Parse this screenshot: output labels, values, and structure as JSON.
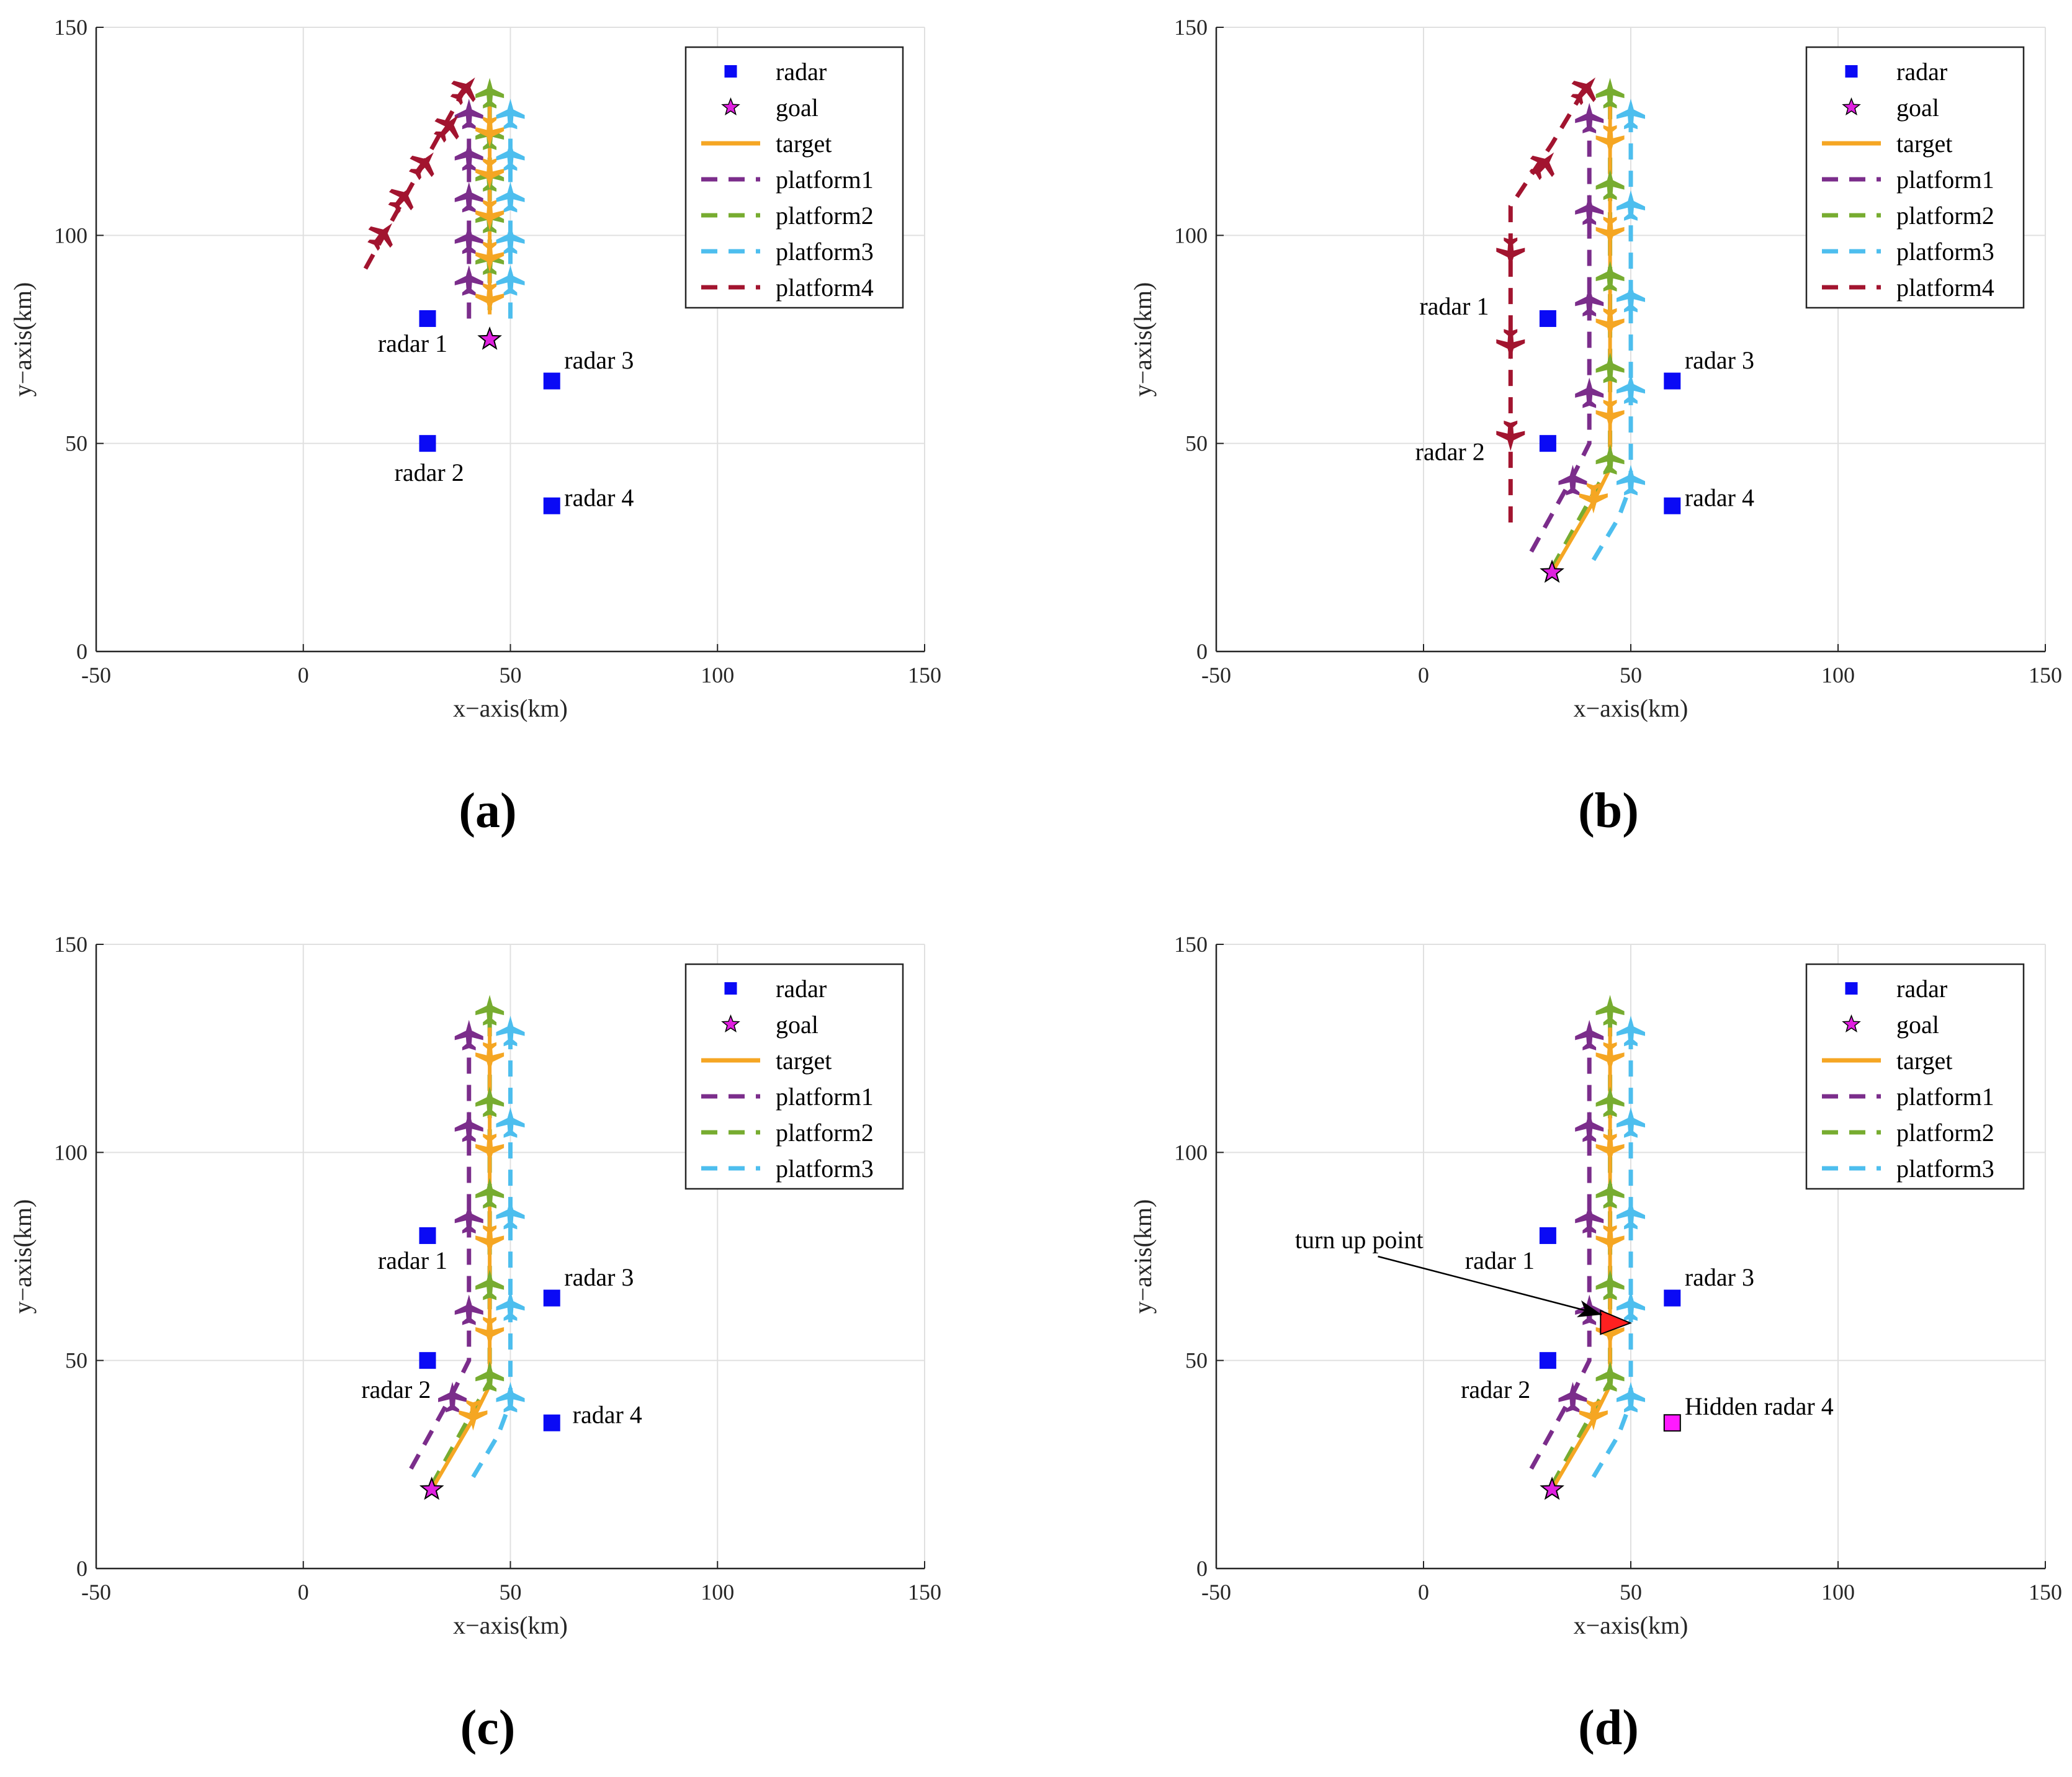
{
  "figure": {
    "panel_labels": [
      "(a)",
      "(b)",
      "(c)",
      "(d)"
    ]
  },
  "colors": {
    "radar": "#0a0af5",
    "hidden_radar": "#ff1aff",
    "goal": "#e020e0",
    "target": "#f5a623",
    "platform1": "#7b2d8b",
    "platform2": "#77ac30",
    "platform3": "#4dbeee",
    "platform4": "#a2142f",
    "grid": "#e0e0e0",
    "axis": "#262626",
    "turn_marker": "#ff2020"
  },
  "chart_data": [
    {
      "type": "scatter",
      "panel": "(a)",
      "xlabel": "x−axis(km)",
      "ylabel": "y−axis(km)",
      "xlim": [
        -50,
        150
      ],
      "ylim": [
        0,
        150
      ],
      "xticks": [
        -50,
        0,
        50,
        100,
        150
      ],
      "yticks": [
        0,
        50,
        100,
        150
      ],
      "xtick_labels": [
        "-50",
        "0",
        "50",
        "100",
        "150"
      ],
      "ytick_labels": [
        "0",
        "50",
        "100",
        "150"
      ],
      "legend": [
        "radar",
        "goal",
        "target",
        "platform1",
        "platform2",
        "platform3",
        "platform4"
      ],
      "radars": [
        {
          "name": "radar 1",
          "x": 30,
          "y": 80,
          "label": "radar 1",
          "label_at": [
            18,
            72
          ]
        },
        {
          "name": "radar 2",
          "x": 30,
          "y": 50,
          "label": "radar 2",
          "label_at": [
            22,
            41
          ]
        },
        {
          "name": "radar 3",
          "x": 60,
          "y": 65,
          "label": "radar 3",
          "label_at": [
            63,
            68
          ]
        },
        {
          "name": "radar 4",
          "x": 60,
          "y": 35,
          "label": "radar 4",
          "label_at": [
            63,
            35
          ]
        }
      ],
      "goal": {
        "x": 45,
        "y": 75
      },
      "target": {
        "path": [
          [
            45,
            81
          ],
          [
            45,
            135
          ]
        ],
        "planes": [
          [
            45,
            85
          ],
          [
            45,
            95
          ],
          [
            45,
            105
          ],
          [
            45,
            115
          ],
          [
            45,
            125
          ]
        ],
        "plane_dir": "down"
      },
      "platforms": [
        {
          "name": "platform1",
          "path": [
            [
              40,
              80
            ],
            [
              40,
              130
            ]
          ],
          "planes": [
            [
              40,
              89
            ],
            [
              40,
              99
            ],
            [
              40,
              109
            ],
            [
              40,
              119
            ],
            [
              40,
              129
            ]
          ],
          "plane_dir": "up"
        },
        {
          "name": "platform2",
          "path": [
            [
              45,
              82
            ],
            [
              45,
              135
            ]
          ],
          "planes": [
            [
              45,
              94
            ],
            [
              45,
              104
            ],
            [
              45,
              114
            ],
            [
              45,
              124
            ],
            [
              45,
              134
            ]
          ],
          "plane_dir": "up"
        },
        {
          "name": "platform3",
          "path": [
            [
              50,
              80
            ],
            [
              50,
              130
            ]
          ],
          "planes": [
            [
              50,
              89
            ],
            [
              50,
              99
            ],
            [
              50,
              109
            ],
            [
              50,
              119
            ],
            [
              50,
              129
            ]
          ],
          "plane_dir": "up"
        },
        {
          "name": "platform4",
          "path": [
            [
              15,
              92
            ],
            [
              40,
              137
            ]
          ],
          "planes": [
            [
              19,
              100
            ],
            [
              24,
              109
            ],
            [
              29,
              117
            ],
            [
              35,
              126
            ],
            [
              39,
              135
            ]
          ],
          "plane_dir": "upright"
        }
      ]
    },
    {
      "type": "scatter",
      "panel": "(b)",
      "xlabel": "x−axis(km)",
      "ylabel": "y−axis(km)",
      "xlim": [
        -50,
        150
      ],
      "ylim": [
        0,
        150
      ],
      "xticks": [
        -50,
        0,
        50,
        100,
        150
      ],
      "yticks": [
        0,
        50,
        100,
        150
      ],
      "xtick_labels": [
        "-50",
        "0",
        "50",
        "100",
        "150"
      ],
      "ytick_labels": [
        "0",
        "50",
        "100",
        "150"
      ],
      "legend": [
        "radar",
        "goal",
        "target",
        "platform1",
        "platform2",
        "platform3",
        "platform4"
      ],
      "radars": [
        {
          "name": "radar 1",
          "x": 30,
          "y": 80,
          "label": "radar 1",
          "label_at": [
            -1,
            81
          ]
        },
        {
          "name": "radar 2",
          "x": 30,
          "y": 50,
          "label": "radar 2",
          "label_at": [
            -2,
            46
          ]
        },
        {
          "name": "radar 3",
          "x": 60,
          "y": 65,
          "label": "radar 3",
          "label_at": [
            63,
            68
          ]
        },
        {
          "name": "radar 4",
          "x": 60,
          "y": 35,
          "label": "radar 4",
          "label_at": [
            63,
            35
          ]
        }
      ],
      "goal": {
        "x": 31,
        "y": 19
      },
      "target": {
        "path": [
          [
            31,
            19
          ],
          [
            41,
            36
          ],
          [
            45,
            44
          ],
          [
            45,
            135
          ]
        ],
        "planes": [
          [
            41,
            37
          ],
          [
            45,
            57
          ],
          [
            45,
            79
          ],
          [
            45,
            101
          ],
          [
            45,
            123
          ]
        ],
        "plane_dir": "down"
      },
      "platforms": [
        {
          "name": "platform1",
          "path": [
            [
              26,
              24
            ],
            [
              36,
              42
            ],
            [
              40,
              50
            ],
            [
              40,
              130
            ]
          ],
          "planes": [
            [
              36,
              41
            ],
            [
              40,
              62
            ],
            [
              40,
              84
            ],
            [
              40,
              106
            ],
            [
              40,
              128
            ]
          ],
          "plane_dir": "up"
        },
        {
          "name": "platform2",
          "path": [
            [
              31,
              20
            ],
            [
              41,
              38
            ],
            [
              45,
              45
            ],
            [
              45,
              135
            ]
          ],
          "planes": [
            [
              45,
              46
            ],
            [
              45,
              68
            ],
            [
              45,
              90
            ],
            [
              45,
              112
            ],
            [
              45,
              134
            ]
          ],
          "plane_dir": "up"
        },
        {
          "name": "platform3",
          "path": [
            [
              41,
              22
            ],
            [
              47,
              32
            ],
            [
              50,
              40
            ],
            [
              50,
              130
            ]
          ],
          "planes": [
            [
              50,
              41
            ],
            [
              50,
              63
            ],
            [
              50,
              85
            ],
            [
              50,
              107
            ],
            [
              50,
              129
            ]
          ],
          "plane_dir": "up"
        },
        {
          "name": "platform4",
          "path": [
            [
              21,
              31
            ],
            [
              21,
              107
            ],
            [
              31,
              122
            ],
            [
              40,
              137
            ]
          ],
          "planes": [
            [
              21,
              52
            ],
            [
              21,
              74
            ],
            [
              21,
              96
            ],
            [
              29,
              117
            ],
            [
              39,
              135
            ]
          ],
          "plane_dir": "mixed"
        }
      ]
    },
    {
      "type": "scatter",
      "panel": "(c)",
      "xlabel": "x−axis(km)",
      "ylabel": "y−axis(km)",
      "xlim": [
        -50,
        150
      ],
      "ylim": [
        0,
        150
      ],
      "xticks": [
        -50,
        0,
        50,
        100,
        150
      ],
      "yticks": [
        0,
        50,
        100,
        150
      ],
      "xtick_labels": [
        "-50",
        "0",
        "50",
        "100",
        "150"
      ],
      "ytick_labels": [
        "0",
        "50",
        "100",
        "150"
      ],
      "legend": [
        "radar",
        "goal",
        "target",
        "platform1",
        "platform2",
        "platform3"
      ],
      "radars": [
        {
          "name": "radar 1",
          "x": 30,
          "y": 80,
          "label": "radar 1",
          "label_at": [
            18,
            72
          ]
        },
        {
          "name": "radar 2",
          "x": 30,
          "y": 50,
          "label": "radar 2",
          "label_at": [
            14,
            41
          ]
        },
        {
          "name": "radar 3",
          "x": 60,
          "y": 65,
          "label": "radar 3",
          "label_at": [
            63,
            68
          ]
        },
        {
          "name": "radar 4",
          "x": 60,
          "y": 35,
          "label": "radar 4",
          "label_at": [
            65,
            35
          ]
        }
      ],
      "goal": {
        "x": 31,
        "y": 19
      },
      "target": {
        "path": [
          [
            31,
            19
          ],
          [
            41,
            36
          ],
          [
            45,
            44
          ],
          [
            45,
            130
          ]
        ],
        "planes": [
          [
            41,
            37
          ],
          [
            45,
            57
          ],
          [
            45,
            79
          ],
          [
            45,
            101
          ],
          [
            45,
            123
          ]
        ],
        "plane_dir": "down"
      },
      "platforms": [
        {
          "name": "platform1",
          "path": [
            [
              26,
              24
            ],
            [
              36,
              42
            ],
            [
              40,
              50
            ],
            [
              40,
              130
            ]
          ],
          "planes": [
            [
              36,
              41
            ],
            [
              40,
              62
            ],
            [
              40,
              84
            ],
            [
              40,
              106
            ],
            [
              40,
              128
            ]
          ],
          "plane_dir": "up"
        },
        {
          "name": "platform2",
          "path": [
            [
              31,
              20
            ],
            [
              41,
              38
            ],
            [
              45,
              45
            ],
            [
              45,
              135
            ]
          ],
          "planes": [
            [
              45,
              46
            ],
            [
              45,
              68
            ],
            [
              45,
              90
            ],
            [
              45,
              112
            ],
            [
              45,
              134
            ]
          ],
          "plane_dir": "up"
        },
        {
          "name": "platform3",
          "path": [
            [
              41,
              22
            ],
            [
              47,
              32
            ],
            [
              50,
              40
            ],
            [
              50,
              130
            ]
          ],
          "planes": [
            [
              50,
              41
            ],
            [
              50,
              63
            ],
            [
              50,
              85
            ],
            [
              50,
              107
            ],
            [
              50,
              129
            ]
          ],
          "plane_dir": "up"
        }
      ]
    },
    {
      "type": "scatter",
      "panel": "(d)",
      "xlabel": "x−axis(km)",
      "ylabel": "y−axis(km)",
      "xlim": [
        -50,
        150
      ],
      "ylim": [
        0,
        150
      ],
      "xticks": [
        -50,
        0,
        50,
        100,
        150
      ],
      "yticks": [
        0,
        50,
        100,
        150
      ],
      "xtick_labels": [
        "-50",
        "0",
        "50",
        "100",
        "150"
      ],
      "ytick_labels": [
        "0",
        "50",
        "100",
        "150"
      ],
      "legend": [
        "radar",
        "goal",
        "target",
        "platform1",
        "platform2",
        "platform3"
      ],
      "radars": [
        {
          "name": "radar 1",
          "x": 30,
          "y": 80,
          "label": "radar 1",
          "label_at": [
            10,
            72
          ]
        },
        {
          "name": "radar 2",
          "x": 30,
          "y": 50,
          "label": "radar 2",
          "label_at": [
            9,
            41
          ]
        },
        {
          "name": "radar 3",
          "x": 60,
          "y": 65,
          "label": "radar 3",
          "label_at": [
            63,
            68
          ]
        },
        {
          "name": "Hidden radar 4",
          "x": 60,
          "y": 35,
          "label": "Hidden radar 4",
          "label_at": [
            63,
            37
          ],
          "hidden": true
        }
      ],
      "goal": {
        "x": 31,
        "y": 19
      },
      "annotation": {
        "text": "turn up point",
        "text_at": [
          -31,
          77
        ],
        "arrow_from": [
          -11,
          75
        ],
        "arrow_to": [
          43,
          61
        ]
      },
      "turn_point": {
        "x": 46,
        "y": 59
      },
      "target": {
        "path": [
          [
            31,
            19
          ],
          [
            41,
            36
          ],
          [
            45,
            44
          ],
          [
            45,
            130
          ]
        ],
        "planes": [
          [
            41,
            37
          ],
          [
            45,
            57
          ],
          [
            45,
            79
          ],
          [
            45,
            101
          ],
          [
            45,
            123
          ]
        ],
        "plane_dir": "down"
      },
      "platforms": [
        {
          "name": "platform1",
          "path": [
            [
              26,
              24
            ],
            [
              36,
              42
            ],
            [
              40,
              50
            ],
            [
              40,
              130
            ]
          ],
          "planes": [
            [
              36,
              41
            ],
            [
              40,
              62
            ],
            [
              40,
              84
            ],
            [
              40,
              106
            ],
            [
              40,
              128
            ]
          ],
          "plane_dir": "up"
        },
        {
          "name": "platform2",
          "path": [
            [
              31,
              20
            ],
            [
              41,
              38
            ],
            [
              45,
              45
            ],
            [
              45,
              135
            ]
          ],
          "planes": [
            [
              45,
              46
            ],
            [
              45,
              68
            ],
            [
              45,
              90
            ],
            [
              45,
              112
            ],
            [
              45,
              134
            ]
          ],
          "plane_dir": "up"
        },
        {
          "name": "platform3",
          "path": [
            [
              41,
              22
            ],
            [
              47,
              32
            ],
            [
              50,
              40
            ],
            [
              50,
              130
            ]
          ],
          "planes": [
            [
              50,
              41
            ],
            [
              50,
              63
            ],
            [
              50,
              85
            ],
            [
              50,
              107
            ],
            [
              50,
              129
            ]
          ],
          "plane_dir": "up"
        }
      ]
    }
  ]
}
